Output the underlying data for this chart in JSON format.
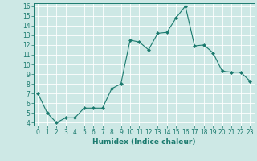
{
  "x": [
    0,
    1,
    2,
    3,
    4,
    5,
    6,
    7,
    8,
    9,
    10,
    11,
    12,
    13,
    14,
    15,
    16,
    17,
    18,
    19,
    20,
    21,
    22,
    23
  ],
  "y": [
    7.0,
    5.0,
    4.0,
    4.5,
    4.5,
    5.5,
    5.5,
    5.5,
    7.5,
    8.0,
    12.5,
    12.3,
    11.5,
    13.2,
    13.3,
    14.8,
    16.0,
    11.9,
    12.0,
    11.2,
    9.3,
    9.2,
    9.2,
    8.3
  ],
  "line_color": "#1a7a6e",
  "marker": "D",
  "marker_size": 2,
  "bg_color": "#cde8e5",
  "grid_color": "#ffffff",
  "xlabel": "Humidex (Indice chaleur)",
  "ylim_min": 4,
  "ylim_max": 16,
  "xlim_min": 0,
  "xlim_max": 23,
  "yticks": [
    4,
    5,
    6,
    7,
    8,
    9,
    10,
    11,
    12,
    13,
    14,
    15,
    16
  ],
  "xticks": [
    0,
    1,
    2,
    3,
    4,
    5,
    6,
    7,
    8,
    9,
    10,
    11,
    12,
    13,
    14,
    15,
    16,
    17,
    18,
    19,
    20,
    21,
    22,
    23
  ],
  "xlabel_fontsize": 6.5,
  "tick_fontsize": 5.5,
  "line_width": 0.8
}
